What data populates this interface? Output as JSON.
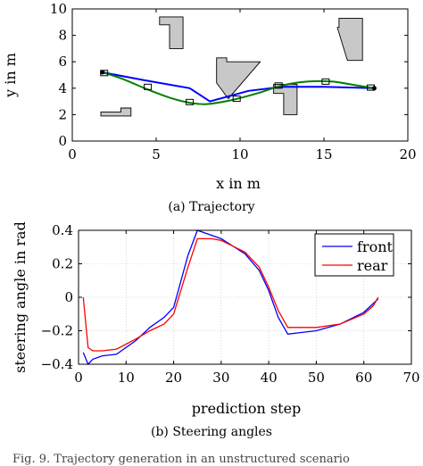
{
  "chart_data": [
    {
      "type": "line",
      "panel": "(a)",
      "caption": "(a) Trajectory",
      "xlabel": "x in m",
      "ylabel": "y in m",
      "xlim": [
        0,
        20
      ],
      "ylim": [
        0,
        10
      ],
      "xticks": [
        0,
        5,
        10,
        15,
        20
      ],
      "yticks": [
        0,
        2,
        4,
        6,
        8,
        10
      ],
      "grid": false,
      "obstacle_color": "#c8c8c8",
      "obstacles": [
        [
          [
            5.2,
            9.4
          ],
          [
            6.6,
            9.4
          ],
          [
            6.6,
            7.0
          ],
          [
            5.8,
            7.0
          ],
          [
            5.8,
            8.8
          ],
          [
            5.2,
            8.8
          ]
        ],
        [
          [
            8.6,
            6.3
          ],
          [
            9.2,
            6.3
          ],
          [
            9.2,
            6.0
          ],
          [
            11.2,
            6.0
          ],
          [
            9.3,
            3.2
          ],
          [
            8.6,
            4.4
          ]
        ],
        [
          [
            12.0,
            4.3
          ],
          [
            13.4,
            4.3
          ],
          [
            13.4,
            2.0
          ],
          [
            12.6,
            2.0
          ],
          [
            12.6,
            3.6
          ],
          [
            12.0,
            3.6
          ]
        ],
        [
          [
            15.9,
            9.3
          ],
          [
            17.3,
            9.3
          ],
          [
            17.3,
            6.1
          ],
          [
            16.4,
            6.1
          ],
          [
            15.8,
            8.6
          ],
          [
            15.9,
            8.6
          ]
        ],
        [
          [
            1.7,
            2.2
          ],
          [
            2.9,
            2.2
          ],
          [
            2.9,
            2.5
          ],
          [
            3.5,
            2.5
          ],
          [
            3.5,
            1.9
          ],
          [
            1.7,
            1.9
          ]
        ]
      ],
      "series": [
        {
          "color": "#0000ff",
          "x": [
            1.8,
            4.3,
            7.0,
            8.2,
            10.5,
            12.5,
            15.0,
            18.0
          ],
          "y": [
            5.2,
            4.6,
            4.0,
            3.0,
            3.8,
            4.1,
            4.1,
            4.0
          ]
        },
        {
          "color": "#008000",
          "x": [
            1.8,
            3.0,
            4.5,
            6.0,
            7.0,
            8.0,
            9.5,
            11.0,
            12.5,
            14.0,
            15.5,
            17.0,
            18.0
          ],
          "y": [
            5.2,
            4.7,
            3.9,
            3.2,
            2.9,
            2.8,
            3.1,
            3.6,
            4.2,
            4.5,
            4.5,
            4.2,
            4.0
          ]
        }
      ],
      "markers": {
        "x": [
          1.9,
          4.5,
          7.0,
          9.8,
          12.3,
          15.1,
          17.8
        ],
        "y": [
          5.15,
          4.1,
          2.95,
          3.2,
          4.2,
          4.5,
          4.05
        ]
      }
    },
    {
      "type": "line",
      "panel": "(b)",
      "caption": "(b) Steering angles",
      "xlabel": "prediction step",
      "ylabel": "steering angle in rad",
      "xlim": [
        0,
        70
      ],
      "ylim": [
        -0.4,
        0.4
      ],
      "xticks": [
        0,
        10,
        20,
        30,
        40,
        50,
        60,
        70
      ],
      "yticks": [
        0.4,
        0.2,
        0,
        -0.2,
        -0.4
      ],
      "grid": true,
      "legend_position": "top-right",
      "series": [
        {
          "name": "front",
          "color": "#0000ff",
          "x": [
            1,
            2,
            3,
            5,
            8,
            12,
            15,
            18,
            20,
            23,
            25,
            28,
            30,
            35,
            38,
            40,
            42,
            44,
            47,
            50,
            55,
            60,
            63
          ],
          "y": [
            -0.33,
            -0.4,
            -0.37,
            -0.35,
            -0.34,
            -0.26,
            -0.18,
            -0.12,
            -0.06,
            0.25,
            0.4,
            0.37,
            0.35,
            0.26,
            0.16,
            0.04,
            -0.12,
            -0.22,
            -0.21,
            -0.2,
            -0.16,
            -0.09,
            -0.01
          ]
        },
        {
          "name": "rear",
          "color": "#ff0000",
          "x": [
            1,
            2,
            3,
            5,
            8,
            12,
            15,
            18,
            20,
            23,
            25,
            28,
            30,
            35,
            38,
            40,
            42,
            44,
            47,
            50,
            55,
            60,
            62,
            63
          ],
          "y": [
            0.0,
            -0.3,
            -0.32,
            -0.32,
            -0.31,
            -0.25,
            -0.2,
            -0.16,
            -0.1,
            0.18,
            0.35,
            0.35,
            0.34,
            0.27,
            0.18,
            0.06,
            -0.08,
            -0.18,
            -0.18,
            -0.18,
            -0.16,
            -0.1,
            -0.05,
            0.0
          ]
        }
      ]
    }
  ],
  "figure_caption": "Fig. 9.   Trajectory generation in an unstructured scenario"
}
